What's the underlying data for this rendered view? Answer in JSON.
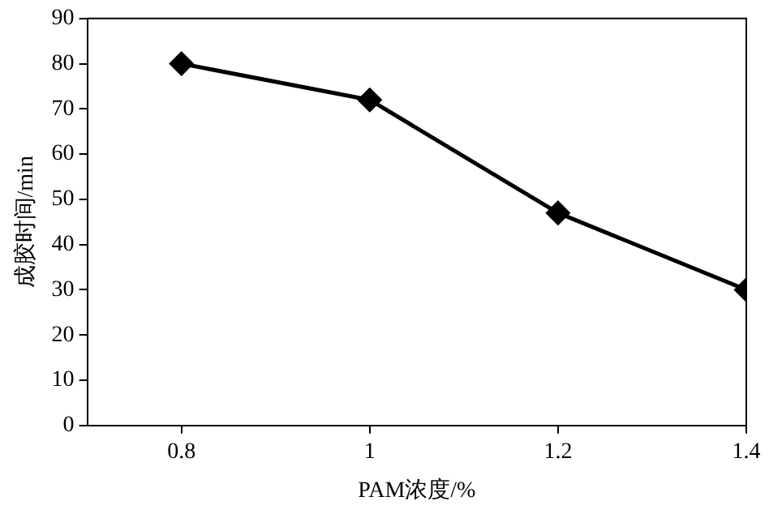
{
  "chart_data": {
    "type": "line",
    "xlabel": "PAM浓度/%",
    "ylabel": "成胶时间/min",
    "x": [
      0.8,
      1,
      1.2,
      1.4
    ],
    "series": [
      {
        "color": "#000000",
        "values": [
          80,
          72,
          47,
          30
        ]
      }
    ],
    "xlim": [
      0.7,
      1.4
    ],
    "xticks": [
      0.8,
      1,
      1.2,
      1.4
    ],
    "ylim": [
      0,
      90
    ],
    "yticks": [
      0,
      10,
      20,
      30,
      40,
      50,
      60,
      70,
      80,
      90
    ],
    "grid": false,
    "legend": false,
    "marker": "diamond",
    "line_style": "solid"
  }
}
